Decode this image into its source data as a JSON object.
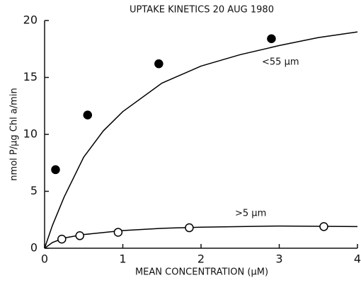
{
  "chart_data": {
    "type": "scatter",
    "title": "UPTAKE KINETICS 20 AUG 1980",
    "x_label": "MEAN CONCENTRATION (µM)",
    "y_label": "nmol P/µg Chl a/min",
    "xlim": [
      0,
      4
    ],
    "xticks": [
      0,
      1,
      2,
      3,
      4
    ],
    "ylim": [
      0,
      20
    ],
    "yticks": [
      0,
      5,
      10,
      15,
      20
    ],
    "grid": false,
    "series": [
      {
        "name": "<55 µm",
        "color": "#000000",
        "filled": true,
        "x": [
          0.14,
          0.55,
          1.46,
          2.9
        ],
        "values": [
          6.9,
          11.7,
          16.2,
          18.4
        ],
        "fit_x": [
          0,
          0.1,
          0.25,
          0.5,
          0.75,
          1,
          1.5,
          2,
          2.5,
          3,
          3.5,
          4
        ],
        "fit_values": [
          0,
          2,
          4.5,
          8,
          10.3,
          12,
          14.5,
          16,
          17,
          17.8,
          18.5,
          19
        ]
      },
      {
        "name": ">5 µm",
        "color": "#000000",
        "filled": false,
        "x": [
          0.22,
          0.45,
          0.94,
          1.85,
          3.57
        ],
        "values": [
          0.8,
          1.1,
          1.4,
          1.8,
          1.9
        ],
        "fit_x": [
          0,
          0.1,
          0.25,
          0.5,
          1,
          1.5,
          2,
          3,
          4
        ],
        "fit_values": [
          0,
          0.5,
          0.9,
          1.2,
          1.55,
          1.75,
          1.85,
          1.95,
          1.9
        ]
      }
    ]
  }
}
